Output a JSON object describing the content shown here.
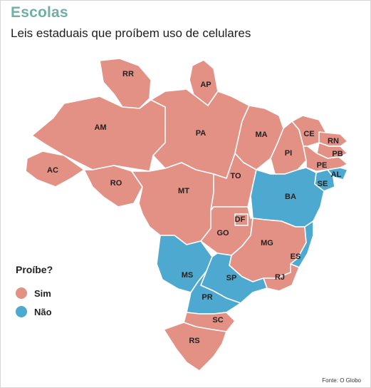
{
  "header": {
    "kicker": "Escolas",
    "title": "Leis estaduais que proíbem uso de celulares"
  },
  "legend": {
    "title": "Proíbe?",
    "items": [
      {
        "label": "Sim",
        "color": "#e39085"
      },
      {
        "label": "Não",
        "color": "#4ea9d1"
      }
    ]
  },
  "source": "Fonte: O Globo",
  "states": [
    {
      "id": "RR",
      "status": "Sim"
    },
    {
      "id": "AP",
      "status": "Sim"
    },
    {
      "id": "AM",
      "status": "Sim"
    },
    {
      "id": "PA",
      "status": "Sim"
    },
    {
      "id": "AC",
      "status": "Sim"
    },
    {
      "id": "RO",
      "status": "Sim"
    },
    {
      "id": "MT",
      "status": "Sim"
    },
    {
      "id": "MA",
      "status": "Sim"
    },
    {
      "id": "PI",
      "status": "Sim"
    },
    {
      "id": "CE",
      "status": "Sim"
    },
    {
      "id": "RN",
      "status": "Sim"
    },
    {
      "id": "PB",
      "status": "Sim"
    },
    {
      "id": "PE",
      "status": "Sim"
    },
    {
      "id": "AL",
      "status": "Não"
    },
    {
      "id": "SE",
      "status": "Não"
    },
    {
      "id": "TO",
      "status": "Sim"
    },
    {
      "id": "BA",
      "status": "Não"
    },
    {
      "id": "DF",
      "status": "Sim"
    },
    {
      "id": "GO",
      "status": "Sim"
    },
    {
      "id": "MG",
      "status": "Sim"
    },
    {
      "id": "ES",
      "status": "Não"
    },
    {
      "id": "RJ",
      "status": "Sim"
    },
    {
      "id": "MS",
      "status": "Não"
    },
    {
      "id": "SP",
      "status": "Não"
    },
    {
      "id": "PR",
      "status": "Não"
    },
    {
      "id": "SC",
      "status": "Sim"
    },
    {
      "id": "RS",
      "status": "Sim"
    }
  ]
}
